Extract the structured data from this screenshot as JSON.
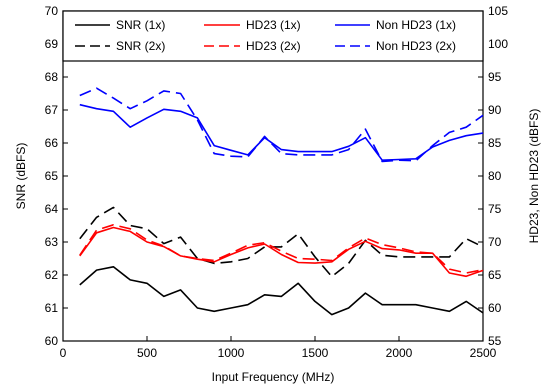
{
  "chart_data": {
    "type": "line",
    "xlabel": "Input Frequency (MHz)",
    "ylabel": "SNR (dBFS)",
    "y2label": "HD23, Non HD23 (dBFS)",
    "xlim": [
      0,
      2500
    ],
    "ylim": [
      60,
      70
    ],
    "y2lim": [
      55,
      105
    ],
    "xticks": [
      "0",
      "500",
      "1000",
      "1500",
      "2000",
      "2500"
    ],
    "yticks": [
      "60",
      "61",
      "62",
      "63",
      "64",
      "65",
      "66",
      "67",
      "68",
      "69",
      "70"
    ],
    "y2ticks": [
      "55",
      "60",
      "65",
      "70",
      "75",
      "80",
      "85",
      "90",
      "95",
      "100",
      "105"
    ],
    "grid": false,
    "legend_position": "top",
    "legend": [
      "SNR (1x)",
      "SNR (2x)",
      "HD23 (1x)",
      "HD23 (2x)",
      "Non HD23 (1x)",
      "Non HD23 (2x)"
    ],
    "colors": {
      "snr": "#000000",
      "hd23": "#ff0000",
      "nonhd23": "#0000ff"
    },
    "series": [
      {
        "name": "SNR (1x)",
        "axis": "left",
        "color": "#000000",
        "dash": false,
        "x": [
          100,
          200,
          300,
          400,
          500,
          600,
          700,
          800,
          900,
          1000,
          1100,
          1200,
          1300,
          1400,
          1500,
          1600,
          1700,
          1800,
          1900,
          2000,
          2100,
          2200,
          2300,
          2400,
          2500
        ],
        "y": [
          61.7,
          62.15,
          62.25,
          61.85,
          61.75,
          61.35,
          61.55,
          61.0,
          60.9,
          61.0,
          61.1,
          61.4,
          61.35,
          61.75,
          61.2,
          60.8,
          61.0,
          61.45,
          61.1,
          61.1,
          61.1,
          61.0,
          60.9,
          61.2,
          60.85
        ]
      },
      {
        "name": "SNR (2x)",
        "axis": "left",
        "color": "#000000",
        "dash": true,
        "x": [
          100,
          200,
          300,
          400,
          500,
          600,
          700,
          800,
          900,
          1000,
          1100,
          1200,
          1300,
          1400,
          1500,
          1600,
          1700,
          1800,
          1900,
          2000,
          2100,
          2200,
          2300,
          2400,
          2500
        ],
        "y": [
          63.1,
          63.75,
          64.05,
          63.5,
          63.4,
          62.95,
          63.15,
          62.5,
          62.35,
          62.4,
          62.5,
          62.85,
          62.85,
          63.25,
          62.55,
          61.95,
          62.35,
          63.05,
          62.6,
          62.55,
          62.55,
          62.55,
          62.55,
          63.1,
          62.85
        ]
      },
      {
        "name": "HD23 (1x)",
        "axis": "right",
        "color": "#ff0000",
        "dash": false,
        "x": [
          100,
          200,
          300,
          400,
          500,
          600,
          700,
          800,
          900,
          1000,
          1100,
          1200,
          1300,
          1400,
          1500,
          1600,
          1700,
          1800,
          1900,
          2000,
          2100,
          2200,
          2300,
          2400,
          2500
        ],
        "y": [
          67.9,
          71.4,
          72.2,
          71.6,
          70.0,
          69.3,
          67.9,
          67.4,
          67.0,
          68.1,
          69.1,
          69.7,
          68.1,
          66.9,
          66.8,
          67.0,
          68.9,
          70.1,
          69.0,
          68.8,
          68.3,
          68.3,
          65.3,
          64.8,
          65.7
        ]
      },
      {
        "name": "HD23 (2x)",
        "axis": "right",
        "color": "#ff0000",
        "dash": true,
        "x": [
          100,
          200,
          300,
          400,
          500,
          600,
          700,
          800,
          900,
          1000,
          1100,
          1200,
          1300,
          1400,
          1500,
          1600,
          1700,
          1800,
          1900,
          2000,
          2100,
          2200,
          2300,
          2400,
          2500
        ],
        "y": [
          68.0,
          71.8,
          72.6,
          72.0,
          70.3,
          69.4,
          67.9,
          67.5,
          67.2,
          68.3,
          69.5,
          69.9,
          68.6,
          67.5,
          67.4,
          67.2,
          69.1,
          70.6,
          69.6,
          69.1,
          68.5,
          68.3,
          65.9,
          65.3,
          65.8
        ]
      },
      {
        "name": "Non HD23 (1x)",
        "axis": "right",
        "color": "#0000ff",
        "dash": false,
        "x": [
          100,
          200,
          300,
          400,
          500,
          600,
          700,
          800,
          900,
          1000,
          1100,
          1200,
          1300,
          1400,
          1500,
          1600,
          1700,
          1800,
          1900,
          2000,
          2100,
          2200,
          2300,
          2400,
          2500
        ],
        "y": [
          90.8,
          90.2,
          89.8,
          87.4,
          88.8,
          90.1,
          89.8,
          88.8,
          84.6,
          83.9,
          83.2,
          85.8,
          84.0,
          83.7,
          83.7,
          83.7,
          84.5,
          85.8,
          82.4,
          82.5,
          82.6,
          84.4,
          85.4,
          86.1,
          86.5
        ]
      },
      {
        "name": "Non HD23 (2x)",
        "axis": "right",
        "color": "#0000ff",
        "dash": true,
        "x": [
          100,
          200,
          300,
          400,
          500,
          600,
          700,
          800,
          900,
          1000,
          1100,
          1200,
          1300,
          1400,
          1500,
          1600,
          1700,
          1800,
          1900,
          2000,
          2100,
          2200,
          2300,
          2400,
          2500
        ],
        "y": [
          92.2,
          93.3,
          91.8,
          90.2,
          91.4,
          92.9,
          92.5,
          88.5,
          83.4,
          83.0,
          82.9,
          86.0,
          83.4,
          83.2,
          83.2,
          83.2,
          84.0,
          87.1,
          82.2,
          82.4,
          82.3,
          84.6,
          86.6,
          87.4,
          89.2
        ]
      }
    ]
  }
}
